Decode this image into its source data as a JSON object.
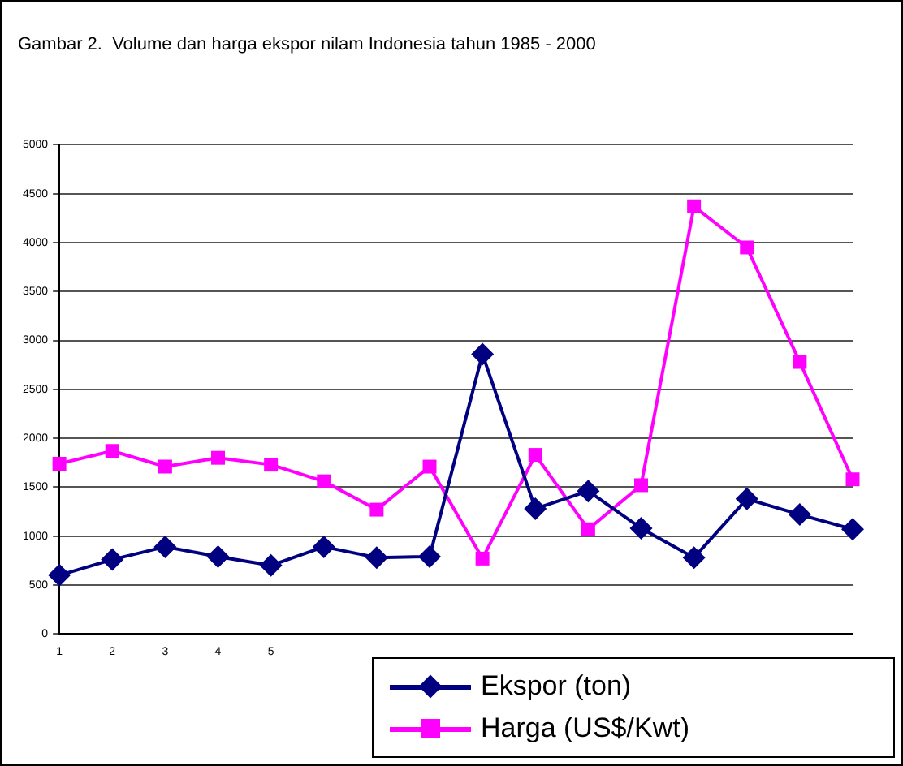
{
  "chart_data": {
    "type": "line",
    "title": "Gambar 2.  Volume dan harga ekspor nilam Indonesia tahun 1985 - 2000",
    "categories": [
      "1",
      "2",
      "3",
      "4",
      "5",
      null,
      null,
      null,
      null,
      null,
      null,
      null,
      null,
      null,
      null,
      null
    ],
    "series": [
      {
        "name": "Ekspor (ton)",
        "color": "#000080",
        "marker": "diamond",
        "values": [
          600,
          760,
          890,
          790,
          700,
          890,
          780,
          790,
          2860,
          1280,
          1460,
          1080,
          780,
          1380,
          1220,
          1070
        ]
      },
      {
        "name": "Harga (US$/Kwt)",
        "color": "#ff00ff",
        "marker": "square",
        "values": [
          1740,
          1870,
          1710,
          1800,
          1730,
          1560,
          1270,
          1710,
          770,
          1830,
          1070,
          1520,
          4370,
          3950,
          2780,
          1580
        ]
      }
    ],
    "ylim": [
      0,
      5000
    ],
    "yticks": [
      0,
      500,
      1000,
      1500,
      2000,
      2500,
      3000,
      3500,
      4000,
      4500,
      5000
    ],
    "grid": "y",
    "legend": "bottom right"
  }
}
